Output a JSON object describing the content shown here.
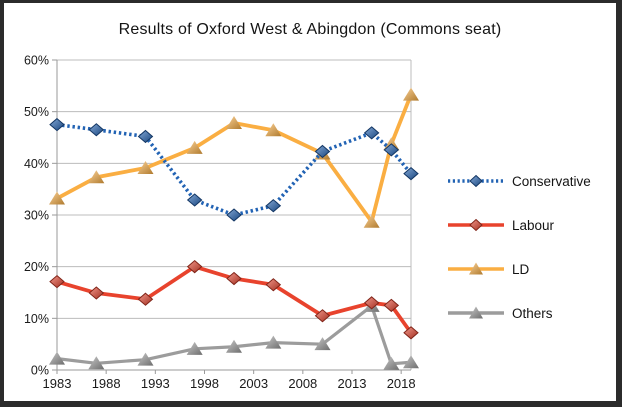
{
  "chart_data": {
    "type": "line",
    "title": "Results of Oxford West & Abingdon (Commons seat)",
    "x": [
      1983,
      1987,
      1992,
      1997,
      2001,
      2005,
      2010,
      2015,
      2017,
      2019
    ],
    "series": [
      {
        "name": "Conservative",
        "color": "#2263B4",
        "line_style": "dotted",
        "marker": "diamond",
        "values": [
          47.5,
          46.5,
          45.2,
          32.9,
          30.0,
          31.8,
          42.3,
          45.9,
          42.6,
          38.0
        ]
      },
      {
        "name": "Labour",
        "color": "#E8432D",
        "line_style": "solid",
        "marker": "diamond",
        "values": [
          17.1,
          14.9,
          13.7,
          20.0,
          17.7,
          16.5,
          10.5,
          13.0,
          12.5,
          7.2
        ]
      },
      {
        "name": "LD",
        "color": "#FAAE42",
        "line_style": "solid",
        "marker": "triangle",
        "values": [
          33.2,
          37.3,
          39.1,
          43.0,
          47.8,
          46.4,
          41.9,
          28.7,
          43.7,
          53.3
        ]
      },
      {
        "name": "Others",
        "color": "#9C9C9C",
        "line_style": "solid",
        "marker": "triangle",
        "values": [
          2.2,
          1.3,
          2.0,
          4.1,
          4.5,
          5.3,
          5.0,
          12.4,
          1.2,
          1.5
        ]
      }
    ],
    "xlim": [
      1983,
      2019
    ],
    "ylim": [
      0,
      60
    ],
    "x_ticks": [
      1983,
      1988,
      1993,
      1998,
      2003,
      2008,
      2013,
      2018
    ],
    "y_ticks": [
      0,
      10,
      20,
      30,
      40,
      50,
      60
    ],
    "y_tick_suffix": "%",
    "grid": "horizontal",
    "legend_position": "right",
    "colors": {
      "frame_border": "#2b2b2b",
      "gridline": "#bcbcbc",
      "axis": "#9a9a9a",
      "text": "#1a1a1a"
    }
  }
}
